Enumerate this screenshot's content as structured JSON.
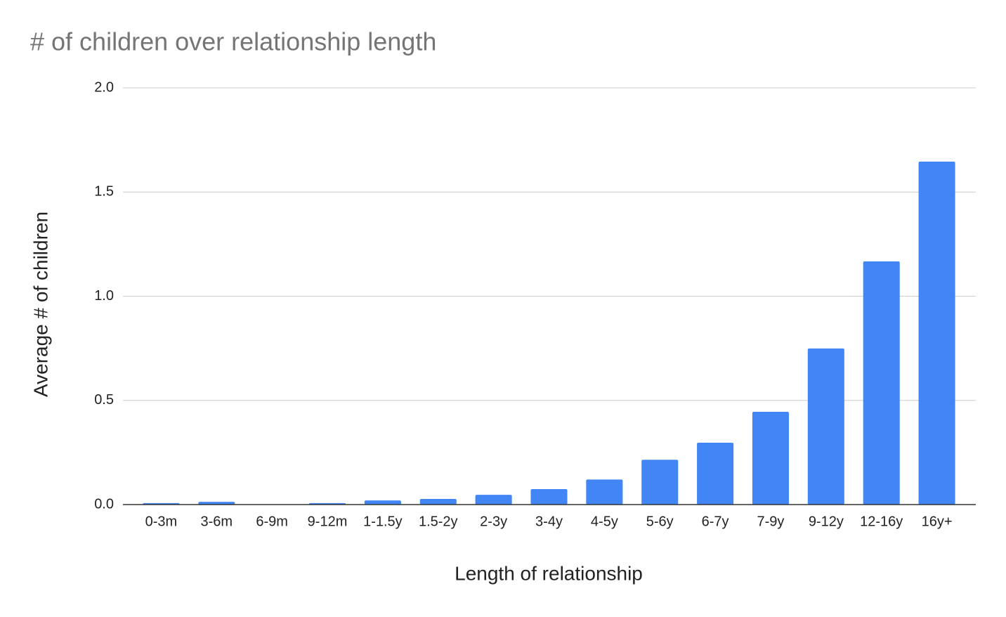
{
  "chart_data": {
    "type": "bar",
    "title": "# of children over relationship length",
    "x_label": "Length of relationship",
    "y_label": "Average # of children",
    "categories": [
      "0-3m",
      "3-6m",
      "6-9m",
      "9-12m",
      "1-1.5y",
      "1.5-2y",
      "2-3y",
      "3-4y",
      "4-5y",
      "5-6y",
      "6-7y",
      "7-9y",
      "9-12y",
      "12-16y",
      "16y+"
    ],
    "values": [
      0.007,
      0.013,
      0,
      0.007,
      0.02,
      0.027,
      0.047,
      0.074,
      0.12,
      0.215,
      0.297,
      0.445,
      0.749,
      1.167,
      1.646
    ],
    "color": "#4285f4",
    "ylim": [
      0,
      2
    ],
    "yticks": [
      {
        "value": 0,
        "label": "0.0"
      },
      0.5,
      {
        "value": 1,
        "label": "1.0"
      },
      1.5,
      {
        "value": 2,
        "label": "2.0"
      }
    ],
    "grid": true
  }
}
